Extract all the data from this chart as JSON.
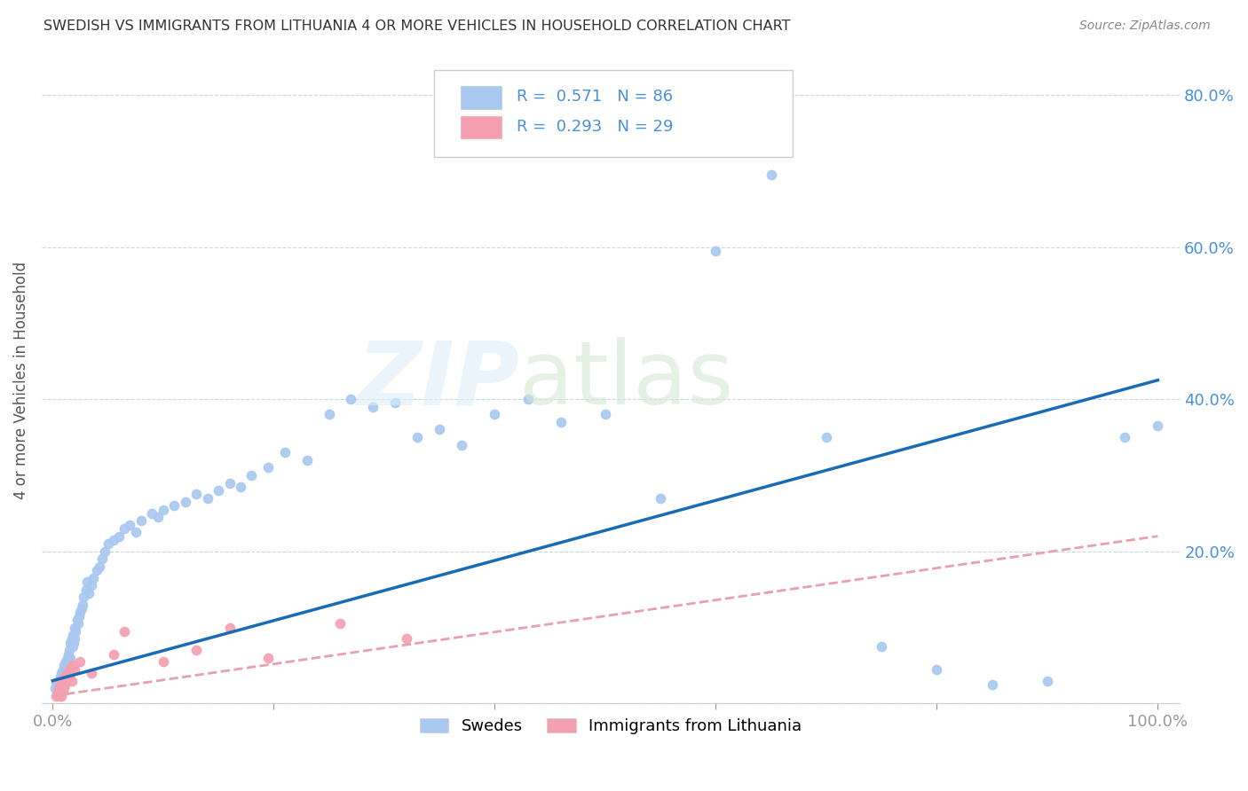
{
  "title": "SWEDISH VS IMMIGRANTS FROM LITHUANIA 4 OR MORE VEHICLES IN HOUSEHOLD CORRELATION CHART",
  "source": "Source: ZipAtlas.com",
  "ylabel": "4 or more Vehicles in Household",
  "xlim": [
    -0.01,
    1.02
  ],
  "ylim": [
    0,
    0.85
  ],
  "xtick_positions": [
    0.0,
    0.2,
    0.4,
    0.6,
    0.8,
    1.0
  ],
  "xticklabels": [
    "0.0%",
    "",
    "",
    "",
    "",
    "100.0%"
  ],
  "ytick_positions": [
    0.0,
    0.2,
    0.4,
    0.6,
    0.8
  ],
  "yticklabels": [
    "",
    "20.0%",
    "40.0%",
    "60.0%",
    "80.0%"
  ],
  "swedes_R": 0.571,
  "swedes_N": 86,
  "lithuania_R": 0.293,
  "lithuania_N": 29,
  "swedes_color": "#a8c8f0",
  "lithuania_color": "#f4a0b0",
  "swedes_line_color": "#1a6bb5",
  "lithuania_line_color": "#e8a0b0",
  "legend_label_swedes": "Swedes",
  "legend_label_lithuania": "Immigrants from Lithuania",
  "swedes_x": [
    0.002,
    0.003,
    0.004,
    0.005,
    0.006,
    0.007,
    0.008,
    0.008,
    0.009,
    0.01,
    0.01,
    0.011,
    0.012,
    0.012,
    0.013,
    0.013,
    0.014,
    0.015,
    0.015,
    0.016,
    0.016,
    0.017,
    0.018,
    0.018,
    0.019,
    0.02,
    0.02,
    0.021,
    0.022,
    0.023,
    0.024,
    0.025,
    0.026,
    0.027,
    0.028,
    0.03,
    0.031,
    0.033,
    0.035,
    0.037,
    0.04,
    0.042,
    0.045,
    0.047,
    0.05,
    0.055,
    0.06,
    0.065,
    0.07,
    0.075,
    0.08,
    0.09,
    0.095,
    0.1,
    0.11,
    0.12,
    0.13,
    0.14,
    0.15,
    0.16,
    0.17,
    0.18,
    0.195,
    0.21,
    0.23,
    0.25,
    0.27,
    0.29,
    0.31,
    0.33,
    0.35,
    0.37,
    0.4,
    0.43,
    0.46,
    0.5,
    0.55,
    0.6,
    0.65,
    0.7,
    0.75,
    0.8,
    0.85,
    0.9,
    0.97,
    1.0
  ],
  "swedes_y": [
    0.02,
    0.025,
    0.015,
    0.03,
    0.02,
    0.035,
    0.04,
    0.025,
    0.045,
    0.03,
    0.05,
    0.04,
    0.055,
    0.035,
    0.06,
    0.045,
    0.065,
    0.07,
    0.05,
    0.08,
    0.06,
    0.085,
    0.075,
    0.09,
    0.08,
    0.1,
    0.085,
    0.095,
    0.11,
    0.105,
    0.115,
    0.12,
    0.125,
    0.13,
    0.14,
    0.15,
    0.16,
    0.145,
    0.155,
    0.165,
    0.175,
    0.18,
    0.19,
    0.2,
    0.21,
    0.215,
    0.22,
    0.23,
    0.235,
    0.225,
    0.24,
    0.25,
    0.245,
    0.255,
    0.26,
    0.265,
    0.275,
    0.27,
    0.28,
    0.29,
    0.285,
    0.3,
    0.31,
    0.33,
    0.32,
    0.38,
    0.4,
    0.39,
    0.395,
    0.35,
    0.36,
    0.34,
    0.38,
    0.4,
    0.37,
    0.38,
    0.27,
    0.595,
    0.695,
    0.35,
    0.075,
    0.045,
    0.025,
    0.03,
    0.35,
    0.365
  ],
  "lithuania_x": [
    0.003,
    0.005,
    0.005,
    0.006,
    0.007,
    0.007,
    0.008,
    0.008,
    0.009,
    0.01,
    0.01,
    0.011,
    0.012,
    0.013,
    0.015,
    0.015,
    0.017,
    0.018,
    0.02,
    0.025,
    0.035,
    0.055,
    0.065,
    0.1,
    0.13,
    0.16,
    0.195,
    0.26,
    0.32
  ],
  "lithuania_y": [
    0.01,
    0.015,
    0.02,
    0.01,
    0.015,
    0.025,
    0.01,
    0.03,
    0.015,
    0.02,
    0.035,
    0.025,
    0.03,
    0.04,
    0.035,
    0.045,
    0.03,
    0.05,
    0.045,
    0.055,
    0.04,
    0.065,
    0.095,
    0.055,
    0.07,
    0.1,
    0.06,
    0.105,
    0.085
  ],
  "swedes_line_x": [
    0.0,
    1.0
  ],
  "swedes_line_y": [
    0.03,
    0.425
  ],
  "lithuania_line_x": [
    0.0,
    1.0
  ],
  "lithuania_line_y": [
    0.01,
    0.22
  ]
}
